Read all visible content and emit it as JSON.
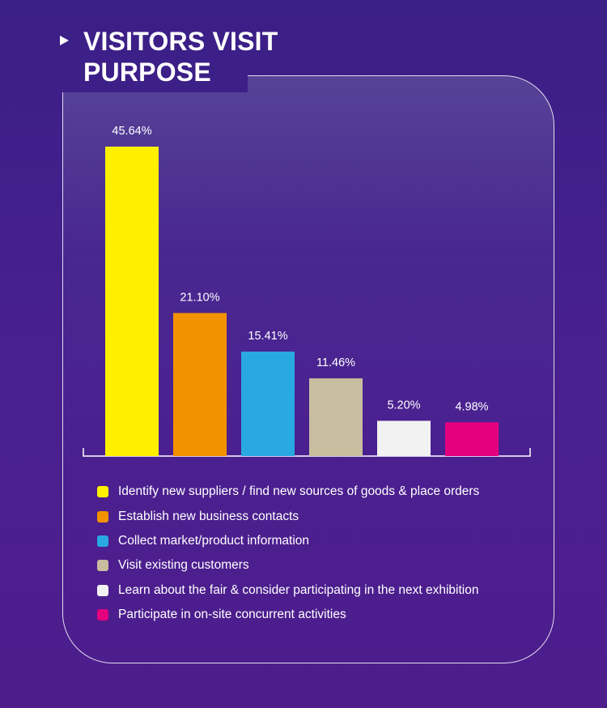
{
  "title": "VISITORS VISIT PURPOSE",
  "title_lines": [
    "VISITORS VISIT",
    "PURPOSE"
  ],
  "chart_data": {
    "type": "bar",
    "title": "VISITORS VISIT PURPOSE",
    "categories": [
      "Identify new suppliers / find new sources of goods & place orders",
      "Establish new business contacts",
      "Collect market/product information",
      "Visit existing customers",
      "Learn about the fair & consider participating in the next exhibition",
      "Participate in on-site concurrent activities"
    ],
    "values": [
      45.64,
      21.1,
      15.41,
      11.46,
      5.2,
      4.98
    ],
    "value_labels": [
      "45.64%",
      "21.10%",
      "15.41%",
      "11.46%",
      "5.20%",
      "4.98%"
    ],
    "colors": [
      "#fff000",
      "#f39200",
      "#29a9e1",
      "#c9bd9f",
      "#f2f2f2",
      "#e4007f"
    ],
    "unit": "%",
    "xlabel": "",
    "ylabel": "",
    "ylim": [
      0,
      45.64
    ],
    "grid": false,
    "legend": "bottom"
  }
}
